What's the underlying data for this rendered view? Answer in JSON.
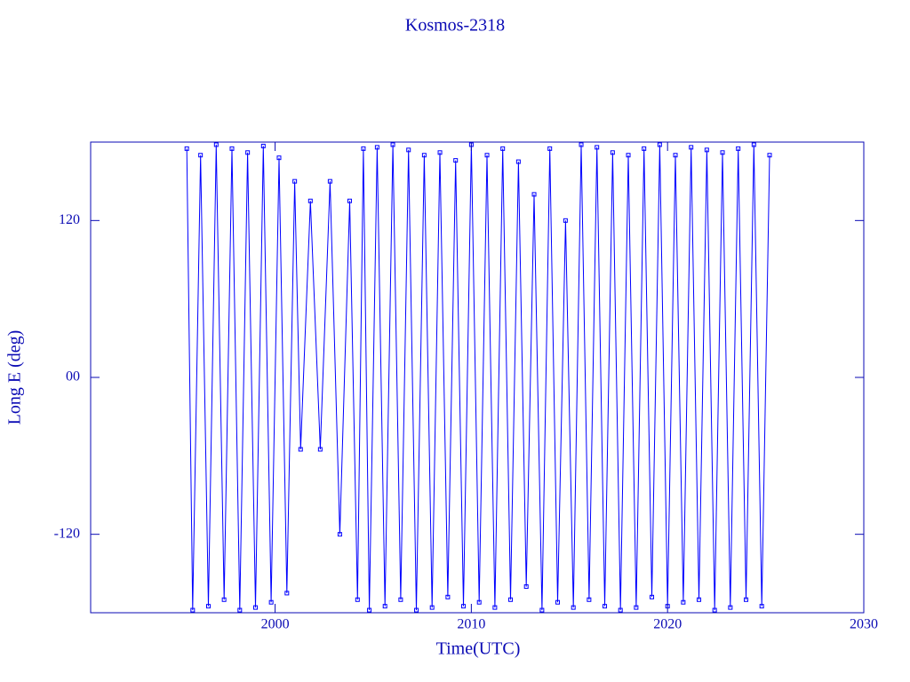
{
  "chart_data": {
    "type": "line",
    "title": "Kosmos-2318",
    "x_label": "Time(UTC)",
    "y_label": "Long E (deg)",
    "color": "#0000ff",
    "x": [
      1995.5,
      1995.8,
      1996.2,
      1996.6,
      1997.0,
      1997.4,
      1997.8,
      1998.2,
      1998.6,
      1999.0,
      1999.4,
      1999.8,
      2000.2,
      2000.6,
      2001.0,
      2001.3,
      2001.8,
      2002.3,
      2002.8,
      2003.3,
      2003.8,
      2004.2,
      2004.5,
      2004.8,
      2005.2,
      2005.6,
      2006.0,
      2006.4,
      2006.8,
      2007.2,
      2007.6,
      2008.0,
      2008.4,
      2008.8,
      2009.2,
      2009.6,
      2010.0,
      2010.4,
      2010.8,
      2011.2,
      2011.6,
      2012.0,
      2012.4,
      2012.8,
      2013.2,
      2013.6,
      2014.0,
      2014.4,
      2014.8,
      2015.2,
      2015.6,
      2016.0,
      2016.4,
      2016.8,
      2017.2,
      2017.6,
      2018.0,
      2018.4,
      2018.8,
      2019.2,
      2019.6,
      2020.0,
      2020.4,
      2020.8,
      2021.2,
      2021.6,
      2022.0,
      2022.4,
      2022.8,
      2023.2,
      2023.6,
      2024.0,
      2024.4,
      2024.8,
      2025.2
    ],
    "values": [
      175,
      -178,
      170,
      -175,
      178,
      -170,
      175,
      -178,
      172,
      -176,
      177,
      -172,
      168,
      -165,
      150,
      -55,
      135,
      -55,
      150,
      -120,
      135,
      -170,
      175,
      -178,
      176,
      -175,
      178,
      -170,
      174,
      -178,
      170,
      -176,
      172,
      -168,
      166,
      -175,
      178,
      -172,
      170,
      -176,
      175,
      -170,
      165,
      -160,
      140,
      -178,
      175,
      -172,
      120,
      -176,
      178,
      -170,
      176,
      -175,
      172,
      -178,
      170,
      -176,
      175,
      -168,
      178,
      -175,
      170,
      -172,
      176,
      -170,
      174,
      -178,
      172,
      -176,
      175,
      -170,
      178,
      -175,
      170
    ],
    "xlim": [
      1990.6,
      2030
    ],
    "ylim": [
      -180,
      180
    ],
    "xticks": [
      2000,
      2010,
      2020,
      2030
    ],
    "yticks": [
      -120,
      {
        "value": 0,
        "label": "00"
      },
      120
    ]
  }
}
